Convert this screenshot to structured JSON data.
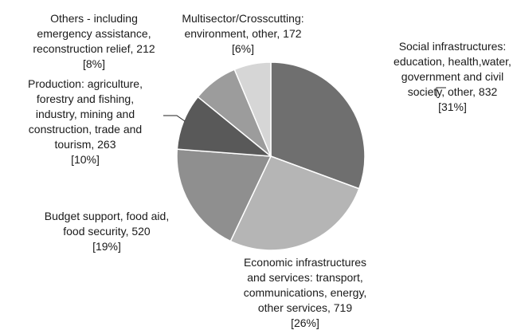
{
  "chart_data": {
    "type": "pie",
    "title": "",
    "slices": [
      {
        "lines": [
          "Social infrastructures:",
          "education, health,water,",
          "government and civil",
          "society, other, 832",
          "[31%]"
        ],
        "value": 832,
        "percent": 31,
        "color": "#6f6f6f"
      },
      {
        "lines": [
          "Economic infrastructures",
          "and services: transport,",
          "communications, energy,",
          "other services, 719",
          "[26%]"
        ],
        "value": 719,
        "percent": 26,
        "color": "#b5b5b5"
      },
      {
        "lines": [
          "Budget support, food aid,",
          "food security, 520",
          "[19%]"
        ],
        "value": 520,
        "percent": 19,
        "color": "#8f8f8f"
      },
      {
        "lines": [
          "Production: agriculture,",
          "forestry and fishing,",
          "industry, mining and",
          "construction, trade and",
          "tourism, 263",
          "[10%]"
        ],
        "value": 263,
        "percent": 10,
        "color": "#595959"
      },
      {
        "lines": [
          "Others - including",
          "emergency assistance,",
          "reconstruction relief, 212",
          "[8%]"
        ],
        "value": 212,
        "percent": 8,
        "color": "#9c9c9c"
      },
      {
        "lines": [
          "Multisector/Crosscutting:",
          "environment, other, 172",
          "[6%]"
        ],
        "value": 172,
        "percent": 6,
        "color": "#d6d6d6"
      }
    ]
  }
}
